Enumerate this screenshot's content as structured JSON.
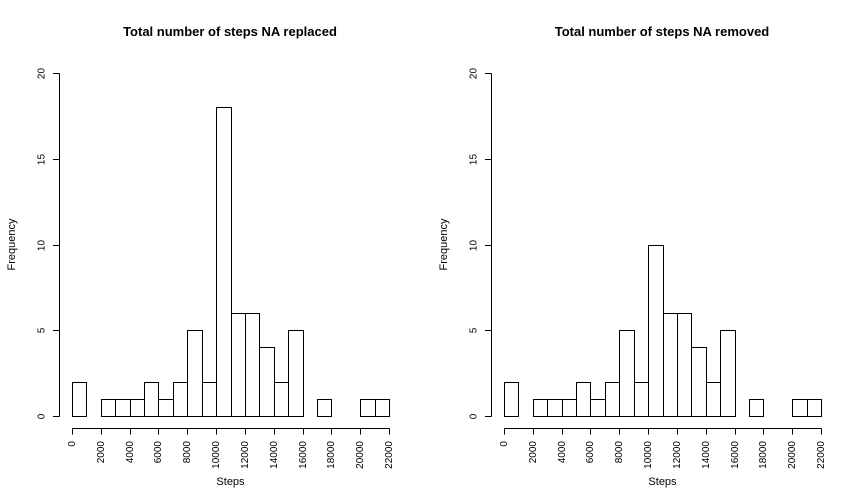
{
  "chart_data": [
    {
      "type": "bar",
      "title": "Total number of steps NA replaced",
      "xlabel": "Steps",
      "ylabel": "Frequency",
      "bin_width": 1000,
      "x_start": 0,
      "xlim": [
        0,
        22000
      ],
      "ylim": [
        0,
        20
      ],
      "x_ticks": [
        "0",
        "2000",
        "4000",
        "6000",
        "8000",
        "10000",
        "12000",
        "14000",
        "16000",
        "18000",
        "20000",
        "22000"
      ],
      "y_ticks": [
        "0",
        "5",
        "10",
        "15",
        "20"
      ],
      "values": [
        2,
        0,
        1,
        1,
        1,
        2,
        1,
        2,
        5,
        2,
        18,
        6,
        6,
        4,
        2,
        5,
        0,
        1,
        0,
        0,
        1,
        1
      ],
      "grid": false
    },
    {
      "type": "bar",
      "title": "Total number of steps NA removed",
      "xlabel": "Steps",
      "ylabel": "Frequency",
      "bin_width": 1000,
      "x_start": 0,
      "xlim": [
        0,
        22000
      ],
      "ylim": [
        0,
        20
      ],
      "x_ticks": [
        "0",
        "2000",
        "4000",
        "6000",
        "8000",
        "10000",
        "12000",
        "14000",
        "16000",
        "18000",
        "20000",
        "22000"
      ],
      "y_ticks": [
        "0",
        "5",
        "10",
        "15",
        "20"
      ],
      "values": [
        2,
        0,
        1,
        1,
        1,
        2,
        1,
        2,
        5,
        2,
        10,
        6,
        6,
        4,
        2,
        5,
        0,
        1,
        0,
        0,
        1,
        1
      ],
      "grid": false
    }
  ]
}
